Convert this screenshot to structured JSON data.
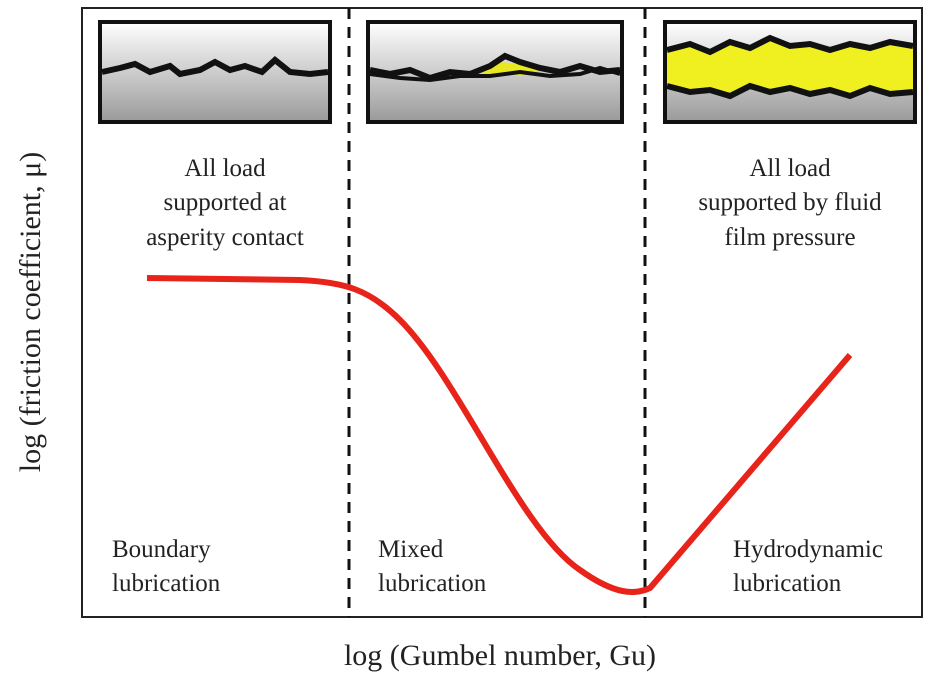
{
  "axes": {
    "x_label": "log (Gumbel number, Gu)",
    "y_label": "log (friction coefficient, μ)"
  },
  "regions": [
    {
      "name": [
        "Boundary",
        "lubrication"
      ],
      "description": [
        "All load",
        "supported at",
        "asperity contact"
      ]
    },
    {
      "name": [
        "Mixed",
        "lubrication"
      ]
    },
    {
      "name": [
        "Hydrodynamic",
        "lubrication"
      ],
      "description": [
        "All load",
        "supported by fluid",
        "film pressure"
      ]
    }
  ]
}
